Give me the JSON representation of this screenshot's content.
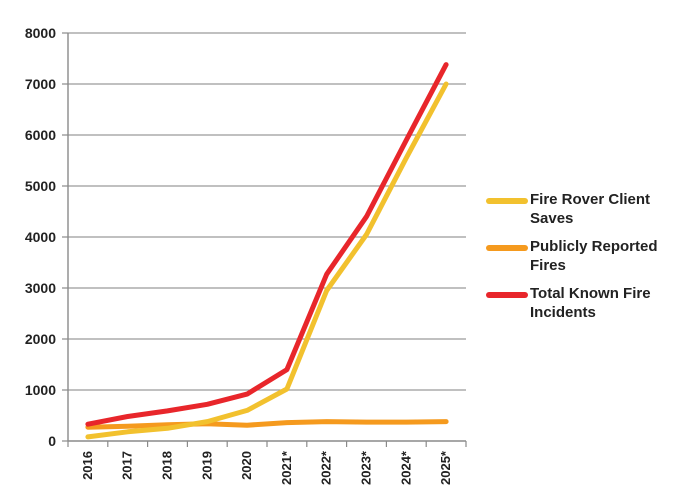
{
  "chart_data": {
    "type": "line",
    "title": "",
    "xlabel": "",
    "ylabel": "",
    "categories": [
      "2016",
      "2017",
      "2018",
      "2019",
      "2020",
      "2021*",
      "2022*",
      "2023*",
      "2024*",
      "2025*"
    ],
    "ylim": [
      0,
      8000
    ],
    "yticks": [
      0,
      1000,
      2000,
      3000,
      4000,
      5000,
      6000,
      7000,
      8000
    ],
    "grid": true,
    "legend_position": "right",
    "series": [
      {
        "name": "Fire Rover Client Saves",
        "color": "#f2c12e",
        "values": [
          80,
          180,
          250,
          380,
          600,
          1020,
          2950,
          4050,
          5550,
          7000
        ]
      },
      {
        "name": "Publicly Reported Fires",
        "color": "#f59a1e",
        "values": [
          270,
          290,
          320,
          340,
          310,
          360,
          380,
          370,
          370,
          380
        ]
      },
      {
        "name": "Total Known Fire Incidents",
        "color": "#e8262b",
        "values": [
          330,
          480,
          590,
          720,
          920,
          1400,
          3270,
          4400,
          5900,
          7380
        ]
      }
    ]
  }
}
